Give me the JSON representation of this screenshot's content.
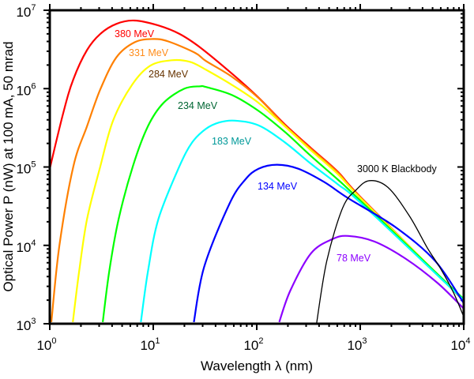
{
  "chart_data": {
    "type": "line",
    "xlabel": "Wavelength λ (nm)",
    "ylabel": "Optical Power P (nW) at 100 mA, 50 mrad",
    "xscale": "log",
    "yscale": "log",
    "xlim": [
      1,
      10000
    ],
    "ylim": [
      1000,
      10000000
    ],
    "grid": false,
    "legend": "inline labels next to curves",
    "x_ticks": [
      {
        "base": "10",
        "exp": "0",
        "value": 1
      },
      {
        "base": "10",
        "exp": "1",
        "value": 10
      },
      {
        "base": "10",
        "exp": "2",
        "value": 100
      },
      {
        "base": "10",
        "exp": "3",
        "value": 1000
      },
      {
        "base": "10",
        "exp": "4",
        "value": 10000
      }
    ],
    "y_ticks": [
      {
        "base": "10",
        "exp": "3",
        "value": 1000
      },
      {
        "base": "10",
        "exp": "4",
        "value": 10000
      },
      {
        "base": "10",
        "exp": "5",
        "value": 100000
      },
      {
        "base": "10",
        "exp": "6",
        "value": 1000000
      },
      {
        "base": "10",
        "exp": "7",
        "value": 10000000
      }
    ],
    "series": [
      {
        "name": "380 MeV",
        "color": "#ff0000",
        "label_color": "#ff0000",
        "points": [
          [
            1,
            95000.0
          ],
          [
            1.35,
            490000.0
          ],
          [
            1.69,
            1320000.0
          ],
          [
            2.29,
            3100000.0
          ],
          [
            3.08,
            5000000.0
          ],
          [
            4.39,
            6700000.0
          ],
          [
            6.58,
            7400000.0
          ],
          [
            11.2,
            6400000.0
          ],
          [
            17.9,
            5000000.0
          ],
          [
            28.4,
            3350000.0
          ],
          [
            57.4,
            1560000.0
          ],
          [
            104,
            770000.0
          ],
          [
            187,
            350000.0
          ],
          [
            334,
            175000.0
          ],
          [
            608,
            87000.0
          ],
          [
            1030,
            40000.0
          ],
          [
            10000,
            1960.0
          ]
        ]
      },
      {
        "name": "331 MeV",
        "color": "#ff8000",
        "label_color": "#ff8c1a",
        "points": [
          [
            1.035,
            1050.0
          ],
          [
            1.24,
            10000.0
          ],
          [
            1.69,
            102000.0
          ],
          [
            2.29,
            330000.0
          ],
          [
            3.08,
            980000.0
          ],
          [
            4.39,
            2500000.0
          ],
          [
            6.58,
            3900000.0
          ],
          [
            9.86,
            4300000.0
          ],
          [
            14.0,
            4000000.0
          ],
          [
            25.5,
            2850000.0
          ],
          [
            32.1,
            2260000.0
          ],
          [
            57.4,
            1420000.0
          ],
          [
            104,
            760000.0
          ],
          [
            187,
            340000.0
          ],
          [
            334,
            170000.0
          ],
          [
            608,
            85000.0
          ],
          [
            1030,
            39000.0
          ],
          [
            10000,
            1960.0
          ]
        ]
      },
      {
        "name": "284 MeV",
        "color": "#ffff00",
        "label_color": "#663300",
        "points": [
          [
            1.67,
            1050.0
          ],
          [
            1.92,
            4600.0
          ],
          [
            2.29,
            21500.0
          ],
          [
            3.08,
            102000.0
          ],
          [
            4.09,
            390000.0
          ],
          [
            6.24,
            1120000.0
          ],
          [
            9.35,
            1960000.0
          ],
          [
            15.1,
            2300000.0
          ],
          [
            22.6,
            2200000.0
          ],
          [
            32.1,
            1750000.0
          ],
          [
            57.4,
            1120000.0
          ],
          [
            104,
            660000.0
          ],
          [
            187,
            330000.0
          ],
          [
            334,
            163000.0
          ],
          [
            608,
            81000.0
          ],
          [
            1030,
            39000.0
          ],
          [
            10000,
            2000.0
          ]
        ]
      },
      {
        "name": "234 MeV",
        "color": "#00ff00",
        "label_color": "#006633",
        "points": [
          [
            3.25,
            1050.0
          ],
          [
            3.75,
            4600.0
          ],
          [
            4.62,
            21500.0
          ],
          [
            6.35,
            102000.0
          ],
          [
            8.87,
            330000.0
          ],
          [
            12.6,
            660000.0
          ],
          [
            20.0,
            1000000.0
          ],
          [
            28.4,
            1070000.0
          ],
          [
            32.1,
            1050000.0
          ],
          [
            57.4,
            830000.0
          ],
          [
            104,
            520000.0
          ],
          [
            187,
            280000.0
          ],
          [
            334,
            138000.0
          ],
          [
            608,
            69000.0
          ],
          [
            1030,
            36000.0
          ],
          [
            10000,
            2060.0
          ]
        ]
      },
      {
        "name": "183 MeV",
        "color": "#00ffff",
        "label_color": "#009999",
        "points": [
          [
            7.59,
            1050.0
          ],
          [
            8.87,
            4600.0
          ],
          [
            11.2,
            21500.0
          ],
          [
            17.9,
            102000.0
          ],
          [
            23.8,
            206000.0
          ],
          [
            32.1,
            305000.0
          ],
          [
            43.4,
            370000.0
          ],
          [
            61.7,
            390000.0
          ],
          [
            104,
            340000.0
          ],
          [
            187,
            206000.0
          ],
          [
            334,
            110000.0
          ],
          [
            608,
            60000.0
          ],
          [
            1030,
            34000.0
          ],
          [
            10000,
            2000.0
          ]
        ]
      },
      {
        "name": "134 MeV",
        "color": "#0000ff",
        "label_color": "#0000ff",
        "points": [
          [
            24.7,
            1050.0
          ],
          [
            31.0,
            5300.0
          ],
          [
            54.5,
            34000.0
          ],
          [
            77.4,
            69000.0
          ],
          [
            104,
            95000.0
          ],
          [
            157,
            107000.0
          ],
          [
            252,
            95000.0
          ],
          [
            451,
            64000.0
          ],
          [
            764,
            40000.0
          ],
          [
            2200,
            17000.0
          ],
          [
            5310,
            6300.0
          ],
          [
            10000,
            1830.0
          ]
        ]
      },
      {
        "name": "78 MeV",
        "color": "#8c00ff",
        "label_color": "#8c00ff",
        "points": [
          [
            165,
            1050.0
          ],
          [
            211,
            2650.0
          ],
          [
            334,
            7900.0
          ],
          [
            537,
            12000.0
          ],
          [
            764,
            13200.0
          ],
          [
            1370,
            11200.0
          ],
          [
            2770,
            6700.0
          ],
          [
            5600,
            3300.0
          ],
          [
            10000,
            1560.0
          ]
        ]
      },
      {
        "name": "3000 K Blackbody",
        "color": "#000000",
        "label_color": "#000000",
        "points": [
          [
            378,
            1000.0
          ],
          [
            475,
            6300.0
          ],
          [
            676,
            30000.0
          ],
          [
            912,
            51000.0
          ],
          [
            1230,
            67000.0
          ],
          [
            1850,
            55000.0
          ],
          [
            2970,
            24000.0
          ],
          [
            4450,
            9300.0
          ],
          [
            6000,
            5000.0
          ],
          [
            7960,
            2500.0
          ],
          [
            10000,
            1230.0
          ]
        ]
      }
    ]
  }
}
